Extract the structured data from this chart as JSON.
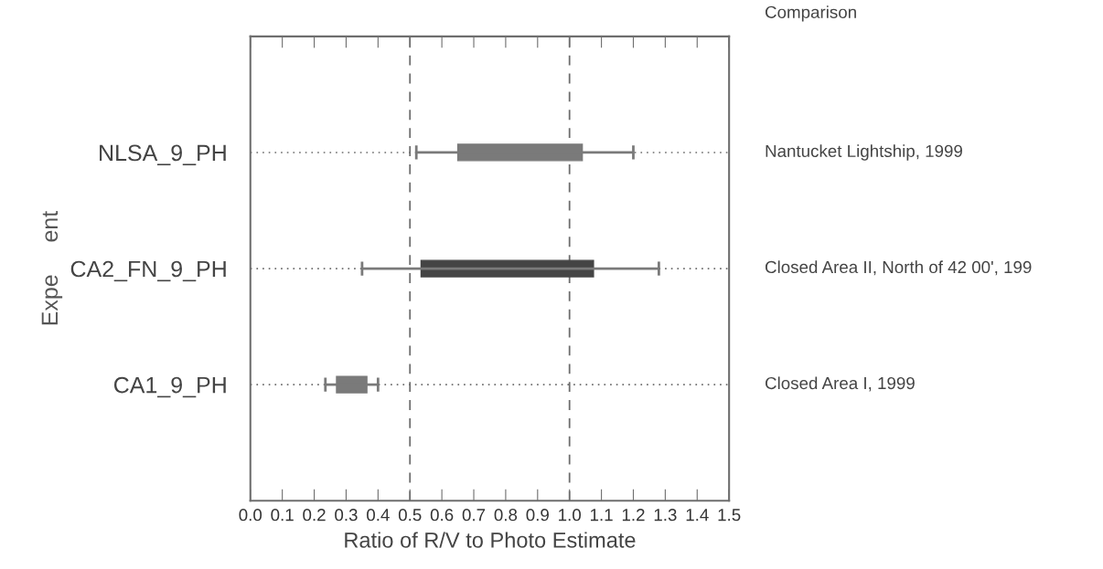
{
  "chart_data": {
    "type": "box",
    "orientation": "horizontal",
    "categories": [
      "NLSA_9_PH",
      "CA2_FN_9_PH",
      "CA1_9_PH"
    ],
    "y2_categories": [
      "Nantucket Lightship, 1999",
      "Closed Area II, North of 42 00', 199",
      "Closed Area I, 1999"
    ],
    "boxes": [
      {
        "low": 0.52,
        "q1": 0.65,
        "q3": 1.04,
        "high": 1.2
      },
      {
        "low": 0.35,
        "q1": 0.535,
        "q3": 1.075,
        "high": 1.28
      },
      {
        "low": 0.235,
        "q1": 0.27,
        "q3": 0.365,
        "high": 0.4
      }
    ],
    "colors": [
      "#7a7a7a",
      "#444444",
      "#7a7a7a"
    ],
    "xlabel": "Ratio of R/V to Photo Estimate",
    "ylabel": "Expe     ent",
    "y2label": "Comparison",
    "xlim": [
      0,
      1.5
    ],
    "xticks": [
      {
        "value": 0,
        "label": "0.0"
      },
      0.1,
      0.2,
      0.3,
      0.4,
      0.5,
      0.6,
      0.7,
      0.8,
      0.9,
      {
        "value": 1,
        "label": "1.0"
      },
      1.1,
      1.2,
      1.3,
      1.4,
      {
        "value": 1.5,
        "label": "1.5"
      }
    ],
    "grid": "y",
    "ref_lines": [
      {
        "axis": "x",
        "value": 0.5,
        "label": null,
        "line_style": "dashed"
      },
      {
        "axis": "x",
        "value": 1.0,
        "label": null,
        "line_style": "dashed"
      }
    ]
  }
}
